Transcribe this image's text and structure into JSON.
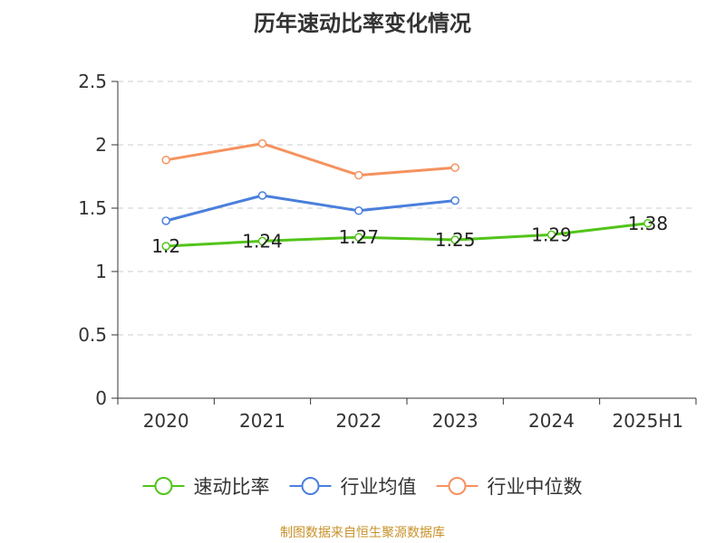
{
  "title": "历年速动比率变化情况",
  "source": "制图数据来自恒生聚源数据库",
  "chart_data": {
    "type": "line",
    "title": "历年速动比率变化情况",
    "categories": [
      "2020",
      "2021",
      "2022",
      "2023",
      "2024",
      "2025H1"
    ],
    "ylim": [
      0,
      2.5
    ],
    "yticks": [
      "0",
      "0.5",
      "1",
      "1.5",
      "2",
      "2.5"
    ],
    "grid": true,
    "legend_position": "bottom",
    "series": [
      {
        "name": "速动比率",
        "color": "#52c41a",
        "values": [
          1.2,
          1.24,
          1.27,
          1.25,
          1.29,
          1.38
        ],
        "labels": [
          "1.2",
          "1.24",
          "1.27",
          "1.25",
          "1.29",
          "1.38"
        ],
        "show_labels": true
      },
      {
        "name": "行业均值",
        "color": "#4a7fdc",
        "values": [
          1.4,
          1.6,
          1.48,
          1.56,
          null,
          null
        ],
        "show_labels": false
      },
      {
        "name": "行业中位数",
        "color": "#f5925e",
        "values": [
          1.88,
          2.01,
          1.76,
          1.82,
          null,
          null
        ],
        "show_labels": false
      }
    ]
  }
}
